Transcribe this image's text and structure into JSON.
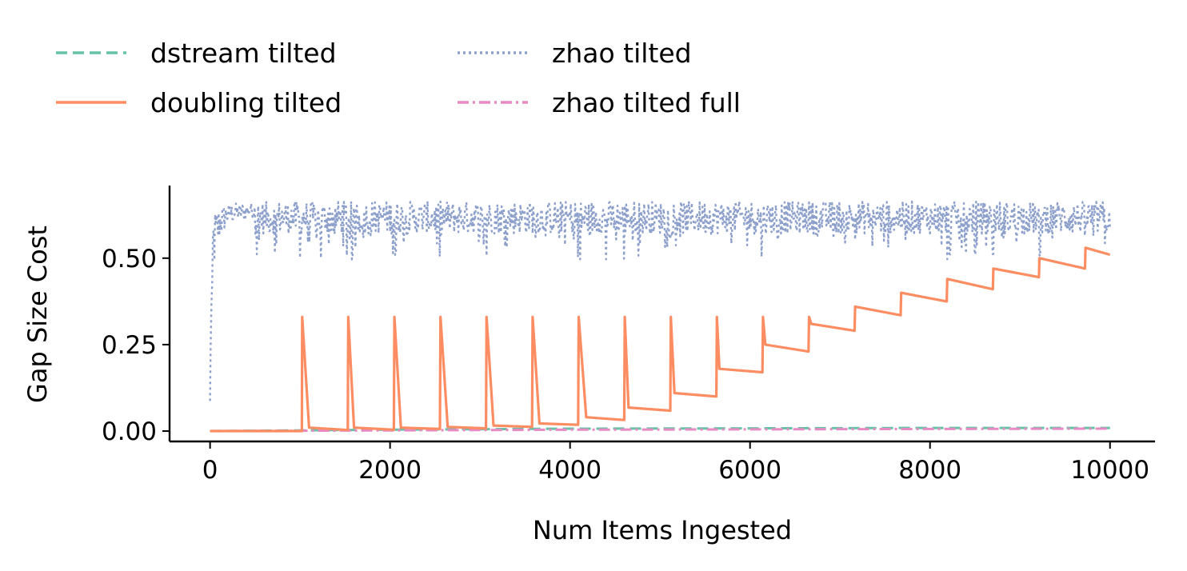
{
  "chart_data": {
    "type": "line",
    "xlabel": "Num Items Ingested",
    "ylabel": "Gap Size Cost",
    "xlim": [
      -450,
      10500
    ],
    "ylim": [
      -0.03,
      0.71
    ],
    "xticks": [
      0,
      2000,
      4000,
      6000,
      8000,
      10000
    ],
    "yticks": [
      0.0,
      0.25,
      0.5
    ],
    "xtick_labels": [
      "0",
      "2000",
      "4000",
      "6000",
      "8000",
      "10000"
    ],
    "ytick_labels": [
      "0.00",
      "0.25",
      "0.50"
    ],
    "grid": false,
    "legend_position": "top-left",
    "series": [
      {
        "name": "dstream tilted",
        "color": "#66c2a5",
        "style": "dashed",
        "points": [
          [
            0,
            0.0
          ],
          [
            2000,
            0.004
          ],
          [
            4000,
            0.007
          ],
          [
            6000,
            0.008
          ],
          [
            8000,
            0.009
          ],
          [
            10000,
            0.009
          ]
        ]
      },
      {
        "name": "doubling tilted",
        "color": "#fc8d62",
        "style": "solid",
        "points": [
          [
            0,
            0.0
          ],
          [
            1020,
            0.0
          ],
          [
            1024,
            0.33
          ],
          [
            1100,
            0.01
          ],
          [
            1530,
            0.003
          ],
          [
            1536,
            0.33
          ],
          [
            1600,
            0.01
          ],
          [
            2042,
            0.004
          ],
          [
            2048,
            0.33
          ],
          [
            2120,
            0.01
          ],
          [
            2554,
            0.006
          ],
          [
            2560,
            0.33
          ],
          [
            2640,
            0.012
          ],
          [
            3066,
            0.008
          ],
          [
            3072,
            0.33
          ],
          [
            3150,
            0.016
          ],
          [
            3578,
            0.012
          ],
          [
            3584,
            0.33
          ],
          [
            3660,
            0.022
          ],
          [
            4090,
            0.018
          ],
          [
            4096,
            0.33
          ],
          [
            4180,
            0.04
          ],
          [
            4602,
            0.032
          ],
          [
            4608,
            0.33
          ],
          [
            4650,
            0.068
          ],
          [
            5114,
            0.059
          ],
          [
            5120,
            0.33
          ],
          [
            5160,
            0.11
          ],
          [
            5626,
            0.1
          ],
          [
            5632,
            0.33
          ],
          [
            5660,
            0.18
          ],
          [
            6138,
            0.17
          ],
          [
            6144,
            0.33
          ],
          [
            6170,
            0.25
          ],
          [
            6650,
            0.23
          ],
          [
            6656,
            0.33
          ],
          [
            6680,
            0.31
          ],
          [
            7162,
            0.29
          ],
          [
            7168,
            0.36
          ],
          [
            7674,
            0.335
          ],
          [
            7680,
            0.4
          ],
          [
            8186,
            0.375
          ],
          [
            8192,
            0.44
          ],
          [
            8698,
            0.41
          ],
          [
            8704,
            0.47
          ],
          [
            9210,
            0.445
          ],
          [
            9216,
            0.5
          ],
          [
            9722,
            0.47
          ],
          [
            9728,
            0.53
          ],
          [
            10000,
            0.51
          ]
        ]
      },
      {
        "name": "zhao tilted",
        "color": "#8da0cb",
        "style": "dotted",
        "envelope": {
          "upper": 0.665,
          "base": 0.57,
          "ramp": [
            [
              0,
              0.0
            ],
            [
              10,
              0.3
            ],
            [
              40,
              0.45
            ],
            [
              100,
              0.55
            ],
            [
              200,
              0.6
            ],
            [
              500,
              0.62
            ]
          ],
          "deep_dips": [
            160,
            250,
            400,
            520,
            720,
            1000,
            1230,
            1520,
            1580,
            2030,
            2060,
            2550,
            3070,
            4090,
            4110,
            4400,
            4600,
            4760,
            6130,
            8190,
            8220,
            8400,
            8500,
            8700,
            9220
          ]
        }
      },
      {
        "name": "zhao tilted full",
        "color": "#e78ac3",
        "style": "dashdot",
        "points": [
          [
            0,
            0.0
          ],
          [
            2000,
            0.002
          ],
          [
            4000,
            0.004
          ],
          [
            6000,
            0.005
          ],
          [
            8000,
            0.006
          ],
          [
            10000,
            0.007
          ]
        ]
      }
    ]
  }
}
